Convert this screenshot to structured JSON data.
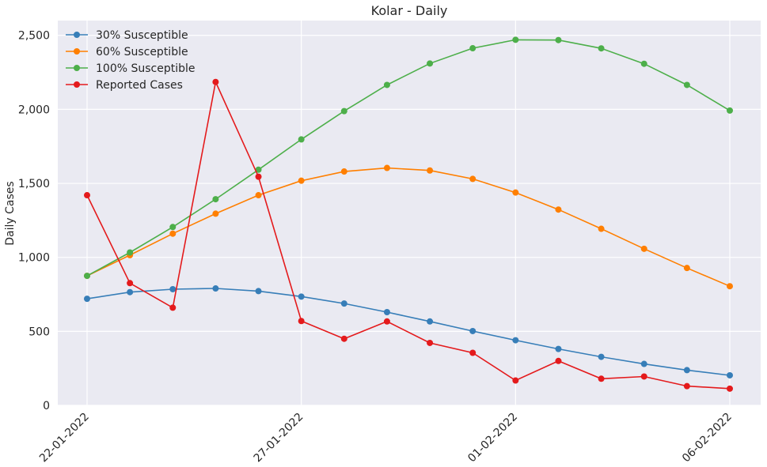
{
  "chart_data": {
    "type": "line",
    "title": "Kolar - Daily",
    "xlabel": "",
    "ylabel": "Daily Cases",
    "x": [
      "22-01-2022",
      "23-01-2022",
      "24-01-2022",
      "25-01-2022",
      "26-01-2022",
      "27-01-2022",
      "28-01-2022",
      "29-01-2022",
      "30-01-2022",
      "31-01-2022",
      "01-02-2022",
      "02-02-2022",
      "03-02-2022",
      "04-02-2022",
      "05-02-2022",
      "06-02-2022"
    ],
    "xticks": [
      "22-01-2022",
      "27-01-2022",
      "01-02-2022",
      "06-02-2022"
    ],
    "ylim": [
      0,
      2600
    ],
    "yticks": [
      0,
      500,
      1000,
      1500,
      2000,
      2500
    ],
    "ytick_labels": [
      "0",
      "500",
      "1,000",
      "1,500",
      "2,000",
      "2,500"
    ],
    "grid": true,
    "legend_position": "top-left",
    "series": [
      {
        "name": "30% Susceptible",
        "color": "#377eb8",
        "values": [
          720,
          765,
          785,
          790,
          772,
          735,
          688,
          630,
          567,
          502,
          440,
          381,
          328,
          280,
          238,
          203
        ]
      },
      {
        "name": "60% Susceptible",
        "color": "#ff7f00",
        "values": [
          875,
          1015,
          1160,
          1295,
          1420,
          1518,
          1580,
          1604,
          1587,
          1530,
          1438,
          1323,
          1193,
          1058,
          928,
          805
        ]
      },
      {
        "name": "100% Susceptible",
        "color": "#4daf4a",
        "values": [
          875,
          1033,
          1205,
          1393,
          1592,
          1797,
          1988,
          2165,
          2310,
          2413,
          2470,
          2468,
          2412,
          2308,
          2165,
          1992
        ]
      },
      {
        "name": "Reported Cases",
        "color": "#e41a1c",
        "values": [
          1420,
          826,
          660,
          2185,
          1545,
          570,
          450,
          567,
          422,
          355,
          168,
          300,
          180,
          195,
          130,
          113
        ]
      }
    ]
  }
}
